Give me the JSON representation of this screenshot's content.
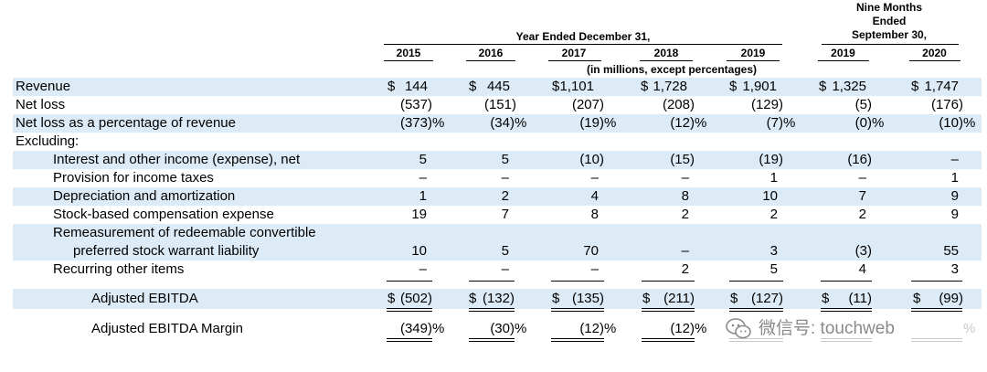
{
  "header": {
    "group1_title": "Year Ended December 31,",
    "group2_title_l1": "Nine Months",
    "group2_title_l2": "Ended",
    "group2_title_l3": "September 30,",
    "years": [
      "2015",
      "2016",
      "2017",
      "2018",
      "2019",
      "2019",
      "2020"
    ],
    "units_note": "(in millions, except percentages)"
  },
  "rows": {
    "revenue": {
      "label": "Revenue",
      "values": [
        "144",
        "445",
        "1,101",
        "1,728",
        "1,901",
        "1,325",
        "1,747"
      ],
      "dollar": "$"
    },
    "net_loss": {
      "label": "Net loss",
      "values": [
        "(537)",
        "(151)",
        "(207)",
        "(208)",
        "(129)",
        "(5)",
        "(176)"
      ]
    },
    "net_loss_pct": {
      "label": "Net loss as a percentage of revenue",
      "values": [
        "(373)",
        "(34)",
        "(19)",
        "(12)",
        "(7)",
        "(0)",
        "(10)"
      ],
      "suffix": "%"
    },
    "excluding": {
      "label": "Excluding:"
    },
    "interest": {
      "label": "Interest and other income (expense), net",
      "values": [
        "5",
        "5",
        "(10)",
        "(15)",
        "(19)",
        "(16)",
        "–"
      ]
    },
    "provision": {
      "label": "Provision for income taxes",
      "values": [
        "–",
        "–",
        "–",
        "–",
        "1",
        "–",
        "1"
      ]
    },
    "depreciation": {
      "label": "Depreciation and amortization",
      "values": [
        "1",
        "2",
        "4",
        "8",
        "10",
        "7",
        "9"
      ]
    },
    "stock_comp": {
      "label": "Stock-based compensation expense",
      "values": [
        "19",
        "7",
        "8",
        "2",
        "2",
        "2",
        "9"
      ]
    },
    "remeasurement": {
      "label_l1": "Remeasurement of redeemable convertible",
      "label_l2": "preferred stock warrant liability",
      "values": [
        "10",
        "5",
        "70",
        "–",
        "3",
        "(3)",
        "55"
      ]
    },
    "recurring": {
      "label": "Recurring other items",
      "values": [
        "–",
        "–",
        "–",
        "2",
        "5",
        "4",
        "3"
      ]
    },
    "adj_ebitda": {
      "label": "Adjusted EBITDA",
      "values": [
        "(502)",
        "(132)",
        "(135)",
        "(211)",
        "(127)",
        "(11)",
        "(99)"
      ],
      "dollar": "$"
    },
    "adj_margin": {
      "label": "Adjusted EBITDA Margin",
      "values": [
        "(349)",
        "(30)",
        "(12)",
        "(12)",
        "",
        "",
        ""
      ],
      "suffix": "%",
      "last_pct": "%"
    }
  },
  "watermark": {
    "text": "微信号: touchweb",
    "icon": "wechat-icon"
  },
  "colors": {
    "band": "#dcebf6"
  }
}
